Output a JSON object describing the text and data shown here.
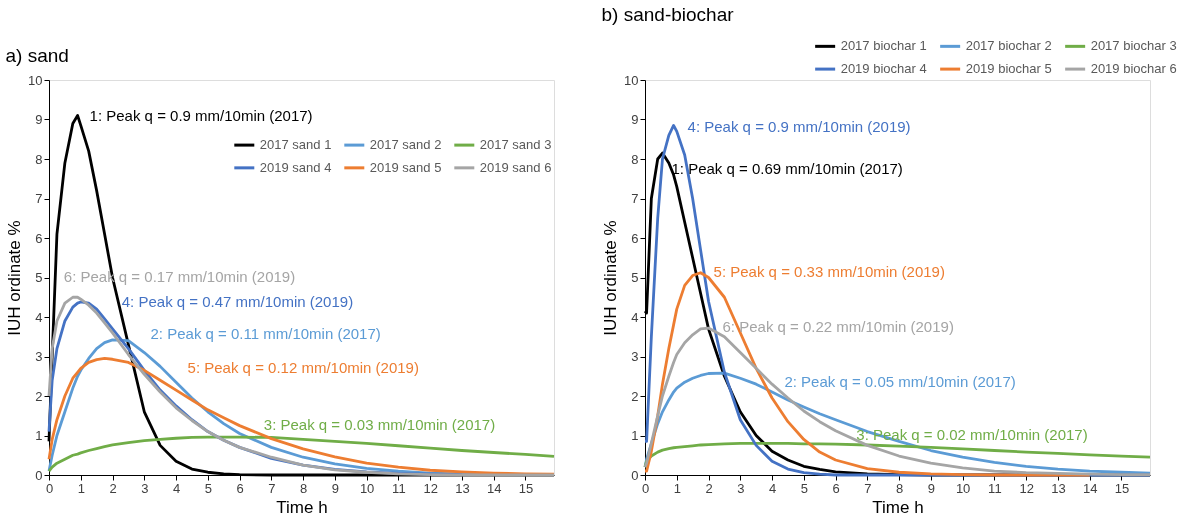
{
  "chart_data": [
    {
      "type": "line",
      "title": "a) sand",
      "xlabel": "Time h",
      "ylabel": "IUH ordinate %",
      "x": [
        0,
        0.1,
        0.25,
        0.5,
        0.75,
        0.9,
        1,
        1.25,
        1.5,
        1.75,
        2,
        2.5,
        3,
        3.5,
        4,
        4.5,
        5,
        5.5,
        6,
        7,
        8,
        9,
        10,
        11,
        12,
        13,
        14,
        15,
        15.9
      ],
      "series": [
        {
          "name": "2017 sand 1",
          "color": "#000000",
          "values": [
            0.85,
            3,
            6.1,
            7.9,
            8.9,
            9.1,
            8.85,
            8.2,
            7.2,
            6.1,
            5.0,
            3.3,
            1.6,
            0.75,
            0.35,
            0.15,
            0.07,
            0.03,
            0.01,
            0,
            0,
            0,
            0,
            0,
            0,
            0,
            0,
            0,
            0
          ]
        },
        {
          "name": "2017 sand 2",
          "color": "#5b9bd5",
          "values": [
            0.1,
            0.5,
            1.0,
            1.6,
            2.2,
            2.5,
            2.65,
            2.95,
            3.2,
            3.35,
            3.42,
            3.4,
            3.1,
            2.75,
            2.35,
            1.95,
            1.6,
            1.3,
            1.05,
            0.7,
            0.45,
            0.28,
            0.17,
            0.1,
            0.05,
            0.03,
            0.02,
            null,
            null
          ]
        },
        {
          "name": "2017 sand 3",
          "color": "#70ad47",
          "values": [
            0.1,
            0.2,
            0.3,
            0.4,
            0.5,
            0.53,
            0.56,
            0.62,
            0.67,
            0.72,
            0.76,
            0.82,
            0.87,
            0.9,
            0.93,
            0.95,
            0.96,
            0.96,
            0.96,
            0.95,
            0.9,
            0.85,
            0.8,
            0.74,
            0.68,
            0.62,
            0.57,
            0.52,
            0.47
          ]
        },
        {
          "name": "2019 sand 4",
          "color": "#4472c4",
          "values": [
            1.1,
            2.4,
            3.2,
            3.9,
            4.25,
            4.35,
            4.38,
            4.35,
            4.2,
            3.95,
            3.7,
            3.2,
            2.65,
            2.15,
            1.75,
            1.4,
            1.1,
            0.88,
            0.7,
            0.42,
            0.25,
            0.14,
            0.08,
            0.04,
            0.02,
            0.01,
            null,
            null,
            null
          ]
        },
        {
          "name": "2019 sand 5",
          "color": "#ed7d31",
          "values": [
            0.4,
            0.9,
            1.4,
            2.0,
            2.45,
            2.6,
            2.7,
            2.85,
            2.92,
            2.95,
            2.93,
            2.85,
            2.65,
            2.4,
            2.15,
            1.9,
            1.65,
            1.45,
            1.25,
            0.92,
            0.66,
            0.46,
            0.3,
            0.2,
            0.12,
            0.08,
            0.05,
            0.03,
            0.02
          ]
        },
        {
          "name": "2019 sand 6",
          "color": "#a5a5a5",
          "values": [
            2.0,
            3.2,
            3.9,
            4.35,
            4.5,
            4.5,
            4.45,
            4.3,
            4.1,
            3.85,
            3.6,
            3.05,
            2.55,
            2.1,
            1.7,
            1.38,
            1.1,
            0.88,
            0.7,
            0.45,
            0.25,
            0.13,
            0.07,
            0.03,
            0.01,
            0,
            0,
            0,
            0
          ]
        }
      ],
      "annotations": [
        "1: Peak q = 0.9 mm/10min (2017)",
        "2: Peak q = 0.11 mm/10min (2017)",
        "3: Peak q = 0.03 mm/10min (2017)",
        "4: Peak q = 0.47 mm/10min (2019)",
        "5: Peak q = 0.12 mm/10min (2019)",
        "6: Peak q = 0.17 mm/10min (2019)"
      ],
      "xlim": [
        0,
        15.9
      ],
      "xticks": [
        0,
        1,
        2,
        3,
        4,
        5,
        6,
        7,
        8,
        9,
        10,
        11,
        12,
        13,
        14,
        15
      ],
      "ylim": [
        0,
        10
      ],
      "yticks": [
        0,
        1,
        2,
        3,
        4,
        5,
        6,
        7,
        8,
        9,
        10
      ],
      "grid": false,
      "legend": "top right",
      "marker": "none",
      "line_style": "solid"
    },
    {
      "type": "line",
      "title": "b) sand-biochar",
      "xlabel": "Time h",
      "ylabel": "IUH ordinate %",
      "x": [
        0,
        0.05,
        0.2,
        0.4,
        0.55,
        0.75,
        0.9,
        1,
        1.25,
        1.5,
        1.75,
        2,
        2.5,
        3,
        3.5,
        4,
        4.5,
        5,
        5.5,
        6,
        7,
        8,
        9,
        10,
        11,
        12,
        13,
        14,
        15,
        15.9
      ],
      "series": [
        {
          "name": "2017 biochar 1",
          "color": "#000000",
          "values": [
            4.15,
            4.1,
            7.0,
            8.0,
            8.15,
            7.9,
            7.6,
            7.3,
            6.4,
            5.5,
            4.6,
            3.7,
            2.5,
            1.6,
            1.0,
            0.6,
            0.38,
            0.22,
            0.14,
            0.08,
            0.03,
            0.01,
            0,
            0,
            0,
            0,
            0,
            0,
            0,
            0
          ]
        },
        {
          "name": "2017 biochar 2",
          "color": "#5b9bd5",
          "values": [
            0.2,
            0.4,
            0.8,
            1.3,
            1.6,
            1.9,
            2.1,
            2.2,
            2.35,
            2.45,
            2.52,
            2.57,
            2.58,
            2.45,
            2.3,
            2.1,
            1.9,
            1.72,
            1.55,
            1.4,
            1.1,
            0.85,
            0.62,
            0.45,
            0.32,
            0.22,
            0.15,
            0.1,
            0.07,
            0.05
          ]
        },
        {
          "name": "2017 biochar 3",
          "color": "#70ad47",
          "values": [
            0.2,
            0.35,
            0.48,
            0.58,
            0.63,
            0.67,
            0.69,
            0.7,
            0.72,
            0.74,
            0.76,
            0.77,
            0.79,
            0.8,
            0.8,
            0.8,
            0.8,
            0.79,
            0.79,
            0.78,
            0.76,
            0.73,
            0.7,
            0.66,
            0.62,
            0.58,
            0.55,
            0.51,
            0.48,
            0.45
          ]
        },
        {
          "name": "2019 biochar 4",
          "color": "#4472c4",
          "values": [
            0.85,
            0.85,
            3.5,
            6.5,
            8.0,
            8.6,
            8.85,
            8.7,
            8.1,
            7.0,
            5.7,
            4.4,
            2.6,
            1.4,
            0.75,
            0.35,
            0.15,
            0.06,
            0.02,
            0,
            0,
            0,
            0,
            0,
            0,
            0,
            0,
            0,
            0,
            0
          ]
        },
        {
          "name": "2019 biochar 5",
          "color": "#ed7d31",
          "values": [
            0.1,
            0.1,
            0.6,
            1.5,
            2.3,
            3.2,
            3.8,
            4.2,
            4.8,
            5.05,
            5.12,
            5.0,
            4.5,
            3.6,
            2.7,
            1.95,
            1.35,
            0.9,
            0.58,
            0.38,
            0.16,
            0.07,
            0.03,
            0.01,
            0,
            0,
            0,
            0,
            null,
            null
          ]
        },
        {
          "name": "2019 biochar 6",
          "color": "#a5a5a5",
          "values": [
            0.2,
            0.3,
            0.8,
            1.5,
            2.0,
            2.5,
            2.85,
            3.05,
            3.35,
            3.55,
            3.7,
            3.72,
            3.5,
            3.1,
            2.7,
            2.3,
            1.95,
            1.62,
            1.35,
            1.12,
            0.75,
            0.48,
            0.3,
            0.18,
            0.1,
            0.06,
            0.04,
            0.02,
            0.01,
            0.01
          ]
        }
      ],
      "annotations": [
        "1: Peak q = 0.69 mm/10min (2017)",
        "2: Peak q = 0.05 mm/10min (2017)",
        "3: Peak q = 0.02 mm/10min (2017)",
        "4: Peak q = 0.9 mm/10min (2019)",
        "5: Peak q = 0.33 mm/10min (2019)",
        "6: Peak q = 0.22 mm/10min (2019)"
      ],
      "xlim": [
        0,
        15.9
      ],
      "xticks": [
        0,
        1,
        2,
        3,
        4,
        5,
        6,
        7,
        8,
        9,
        10,
        11,
        12,
        13,
        14,
        15
      ],
      "ylim": [
        0,
        10
      ],
      "yticks": [
        0,
        1,
        2,
        3,
        4,
        5,
        6,
        7,
        8,
        9,
        10
      ],
      "grid": false,
      "legend": "top",
      "marker": "none",
      "line_style": "solid"
    }
  ]
}
